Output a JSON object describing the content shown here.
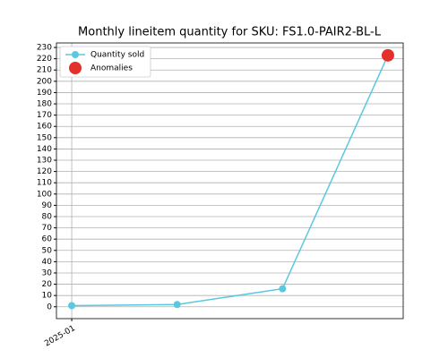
{
  "chart_data": {
    "type": "line",
    "title": "Monthly lineitem quantity for SKU: FS1.0-PAIR2-BL-L",
    "categories": [
      "2025-01",
      null,
      null,
      null
    ],
    "series": [
      {
        "name": "Quantity sold",
        "color": "#5bc8e0",
        "style": "line",
        "values": [
          1,
          2,
          16,
          223
        ]
      },
      {
        "name": "Anomalies",
        "color": "#e3302b",
        "style": "markers",
        "values": [
          null,
          null,
          null,
          223
        ]
      }
    ],
    "ylim": [
      -10.5,
      234
    ],
    "yticks": [
      0,
      10,
      20,
      30,
      40,
      50,
      60,
      70,
      80,
      90,
      100,
      110,
      120,
      130,
      140,
      150,
      160,
      170,
      180,
      190,
      200,
      210,
      220,
      230
    ],
    "grid": true,
    "legend": "upper left"
  }
}
